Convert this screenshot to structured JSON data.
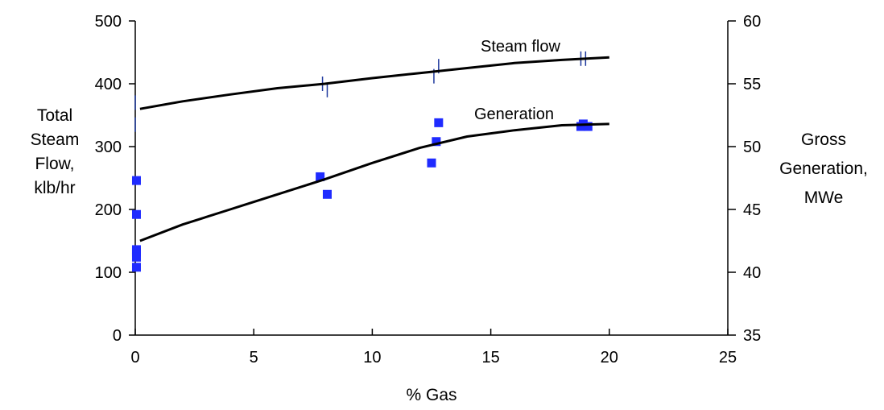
{
  "chart_data": {
    "type": "scatter",
    "xlabel": "% Gas",
    "ylabel_left": [
      "Total",
      "Steam",
      "Flow,",
      "klb/hr"
    ],
    "ylabel_right": [
      "Gross",
      "Generation,",
      "MWe"
    ],
    "xlim": [
      0,
      25
    ],
    "ylim_left": [
      0,
      500
    ],
    "ylim_right": [
      35,
      60
    ],
    "x_ticks": [
      "0",
      "5",
      "10",
      "15",
      "20",
      "25"
    ],
    "y_left_ticks": [
      "0",
      "100",
      "200",
      "300",
      "400",
      "500"
    ],
    "y_right_ticks": [
      "35",
      "40",
      "45",
      "50",
      "55",
      "60"
    ],
    "grid": false,
    "legend": "none",
    "annotations": [
      "Steam flow",
      "Generation"
    ],
    "series": [
      {
        "axis": "left",
        "marker": "dash",
        "color": "#1f3a9e",
        "points": [
          [
            0.0,
            370
          ],
          [
            0.0,
            335
          ],
          [
            7.9,
            400
          ],
          [
            8.1,
            390
          ],
          [
            12.6,
            412
          ],
          [
            12.8,
            428
          ],
          [
            18.8,
            440
          ],
          [
            19.0,
            440
          ]
        ]
      },
      {
        "axis": "right",
        "marker": "square",
        "color": "#1f2bff",
        "points": [
          [
            0.05,
            47.3
          ],
          [
            0.05,
            44.6
          ],
          [
            0.05,
            41.8
          ],
          [
            0.05,
            41.6
          ],
          [
            0.05,
            41.2
          ],
          [
            0.05,
            40.4
          ],
          [
            7.8,
            47.6
          ],
          [
            8.1,
            46.2
          ],
          [
            12.5,
            48.7
          ],
          [
            12.7,
            50.4
          ],
          [
            12.8,
            51.9
          ],
          [
            18.9,
            51.8
          ],
          [
            19.1,
            51.6
          ],
          [
            18.8,
            51.6
          ]
        ]
      },
      {
        "axis": "left",
        "type": "line",
        "color": "#000000",
        "x": [
          0.2,
          2,
          4,
          6,
          8,
          10,
          12,
          14,
          16,
          18,
          20
        ],
        "y": [
          360,
          372,
          383,
          393,
          400,
          409,
          417,
          425,
          433,
          438,
          442
        ]
      },
      {
        "axis": "right",
        "type": "line",
        "color": "#000000",
        "x": [
          0.2,
          2,
          4,
          6,
          8,
          10,
          12,
          14,
          16,
          18,
          20
        ],
        "y": [
          42.5,
          43.8,
          45.0,
          46.2,
          47.4,
          48.7,
          49.9,
          50.8,
          51.3,
          51.7,
          51.8
        ]
      }
    ]
  }
}
